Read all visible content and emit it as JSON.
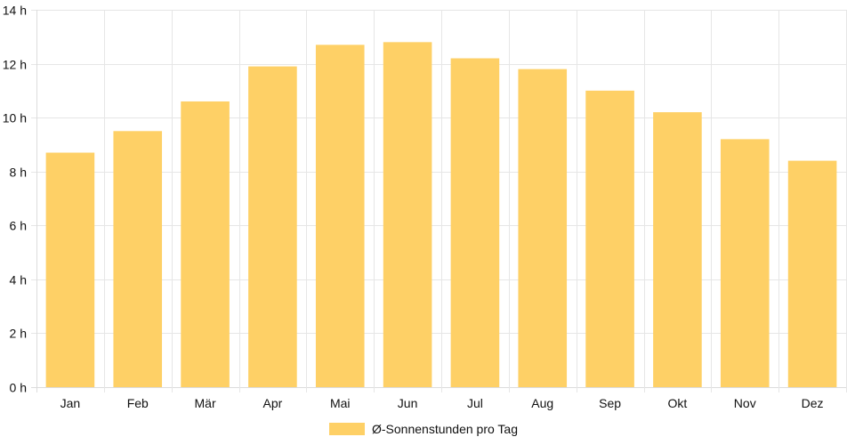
{
  "chart_data": {
    "type": "bar",
    "categories": [
      "Jan",
      "Feb",
      "Mär",
      "Apr",
      "Mai",
      "Jun",
      "Jul",
      "Aug",
      "Sep",
      "Okt",
      "Nov",
      "Dez"
    ],
    "series": [
      {
        "name": "Ø-Sonnenstunden pro Tag",
        "values": [
          8.7,
          9.5,
          10.6,
          11.9,
          12.7,
          12.8,
          12.2,
          11.8,
          11.0,
          10.2,
          9.2,
          8.4
        ],
        "color": "#FED066"
      }
    ],
    "y_ticks": [
      {
        "value": 0,
        "label": "0 h"
      },
      {
        "value": 2,
        "label": "2 h"
      },
      {
        "value": 4,
        "label": "4 h"
      },
      {
        "value": 6,
        "label": "6 h"
      },
      {
        "value": 8,
        "label": "8 h"
      },
      {
        "value": 10,
        "label": "10 h"
      },
      {
        "value": 12,
        "label": "12 h"
      },
      {
        "value": 14,
        "label": "14 h"
      }
    ],
    "ylim": [
      0,
      14
    ],
    "grid": true,
    "legend": "bottom-center"
  }
}
